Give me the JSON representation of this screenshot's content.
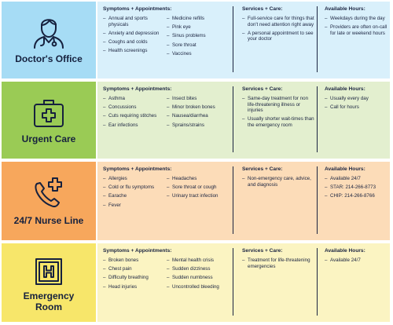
{
  "rows": [
    {
      "label": "Doctor's Office",
      "icon": "doctor-icon",
      "symptoms_heading": "Symptoms + Appointments:",
      "symptoms_left": [
        "Annual and sports physicals",
        "Anxiety and depression",
        "Coughs and colds",
        "Health screenings"
      ],
      "symptoms_right": [
        "Medicine refills",
        "Pink eye",
        "Sinus problems",
        "Sore throat",
        "Vaccines"
      ],
      "services_heading": "Services + Care:",
      "services": [
        "Full-service care for things that don't need attention right away",
        "A personal appointment to see your doctor"
      ],
      "hours_heading": "Available Hours:",
      "hours": [
        "Weekdays during the day",
        "Providers are often on-call for late or weekend hours"
      ]
    },
    {
      "label": "Urgent Care",
      "icon": "first-aid-kit-icon",
      "symptoms_heading": "Symptoms + Appointments:",
      "symptoms_left": [
        "Asthma",
        "Concussions",
        "Cuts requiring stitches",
        "Ear infections"
      ],
      "symptoms_right": [
        "Insect bites",
        "Minor broken bones",
        "Nausea/diarrhea",
        "Sprains/strains"
      ],
      "services_heading": "Services + Care:",
      "services": [
        "Same-day treatment for non life-threatening illness or injuries",
        "Usually shorter wait-times than the emergency room"
      ],
      "hours_heading": "Available Hours:",
      "hours": [
        "Usually every day",
        "Call for hours"
      ]
    },
    {
      "label": "24/7 Nurse Line",
      "icon": "phone-plus-icon",
      "symptoms_heading": "Symptoms + Appointments:",
      "symptoms_left": [
        "Allergies",
        "Cold or flu symptoms",
        "Earache",
        "Fever"
      ],
      "symptoms_right": [
        "Headaches",
        "Sore throat or cough",
        "Urinary tract infection"
      ],
      "services_heading": "Services + Care:",
      "services": [
        "Non-emergency care, advice, and diagnosis"
      ],
      "hours_heading": "Available Hours:",
      "hours": [
        "Available 24/7",
        "STAR: 214-266-8773",
        "CHIP: 214-266-8766"
      ]
    },
    {
      "label": "Emergency Room",
      "icon": "hospital-icon",
      "symptoms_heading": "Symptoms + Appointments:",
      "symptoms_left": [
        "Broken bones",
        "Chest pain",
        "Difficulty breathing",
        "Head injuries"
      ],
      "symptoms_right": [
        "Mental health crisis",
        "Sudden dizziness",
        "Sudden numbness",
        "Uncontrolled bleeding"
      ],
      "services_heading": "Services + Care:",
      "services": [
        "Treatment for life-threatening emergencies"
      ],
      "hours_heading": "Available Hours:",
      "hours": [
        "Available 24/7"
      ]
    }
  ],
  "colors": {
    "blue_panel": "#a6dcf5",
    "blue_bg": "#d9f0fb",
    "green_panel": "#9acb55",
    "green_bg": "#e3efcf",
    "orange_panel": "#f7a75c",
    "orange_bg": "#fcdcb8",
    "yellow_panel": "#f7e66a",
    "yellow_bg": "#fbf4c2",
    "text": "#1b2440"
  }
}
